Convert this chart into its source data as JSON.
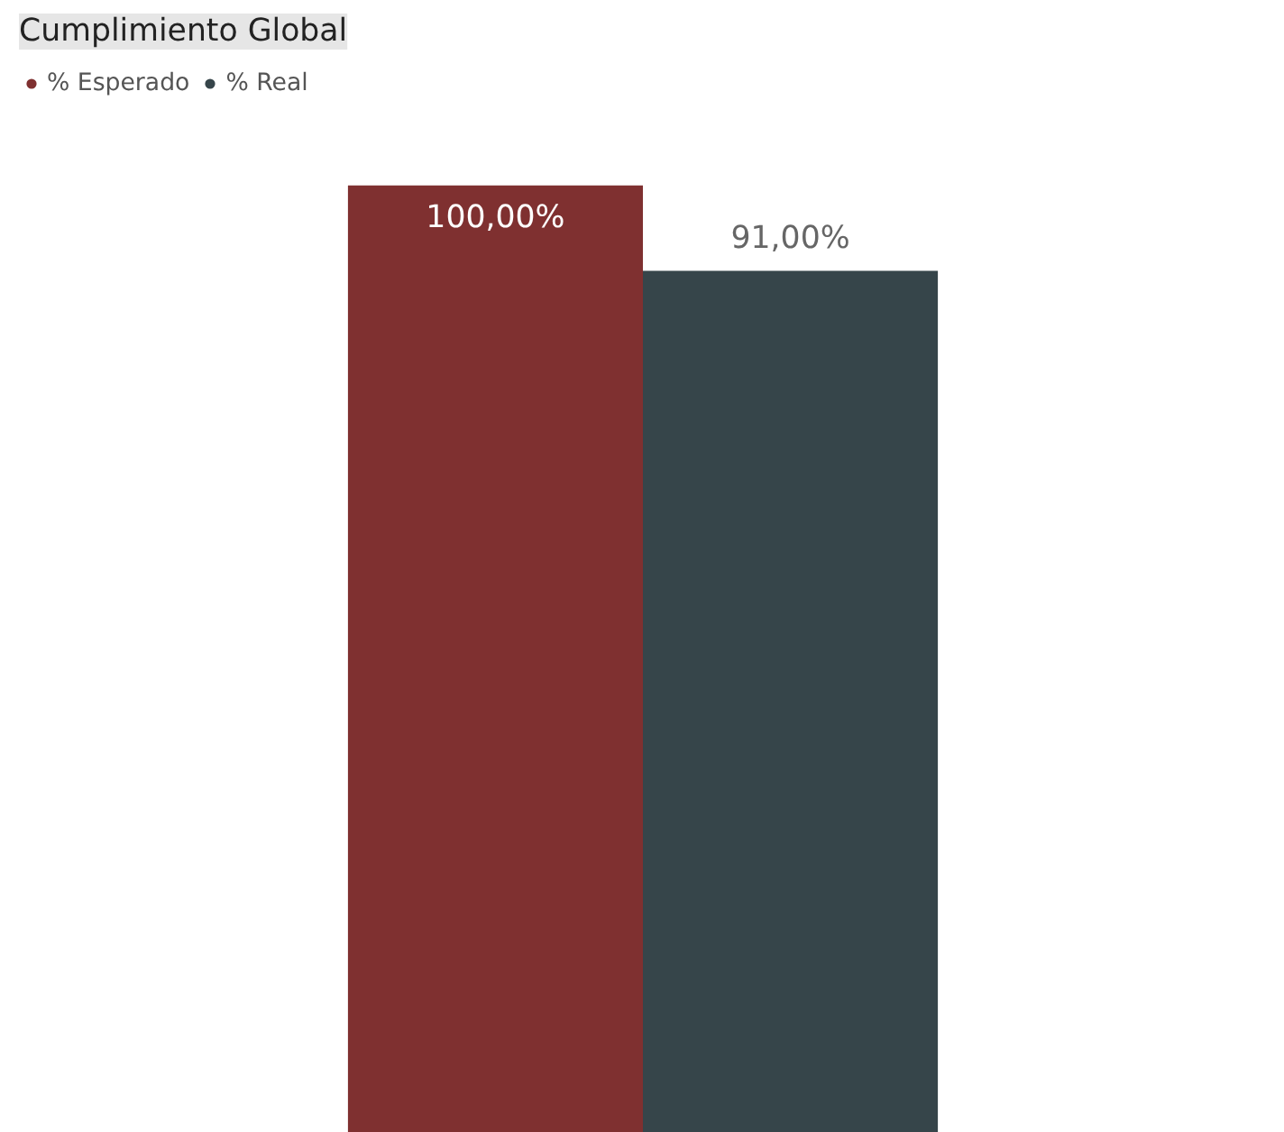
{
  "chart_data": {
    "type": "bar",
    "title": "Cumplimiento Global",
    "categories": [
      null
    ],
    "series": [
      {
        "name": "% Esperado",
        "color": "#7f3030",
        "values": [
          100
        ],
        "value_labels": [
          "100,00%"
        ]
      },
      {
        "name": "% Real",
        "color": "#36454a",
        "values": [
          91
        ],
        "value_labels": [
          "91,00%"
        ]
      }
    ],
    "ylim": [
      0,
      100
    ],
    "tick_labels": false,
    "grid": false,
    "legend": "top left"
  }
}
